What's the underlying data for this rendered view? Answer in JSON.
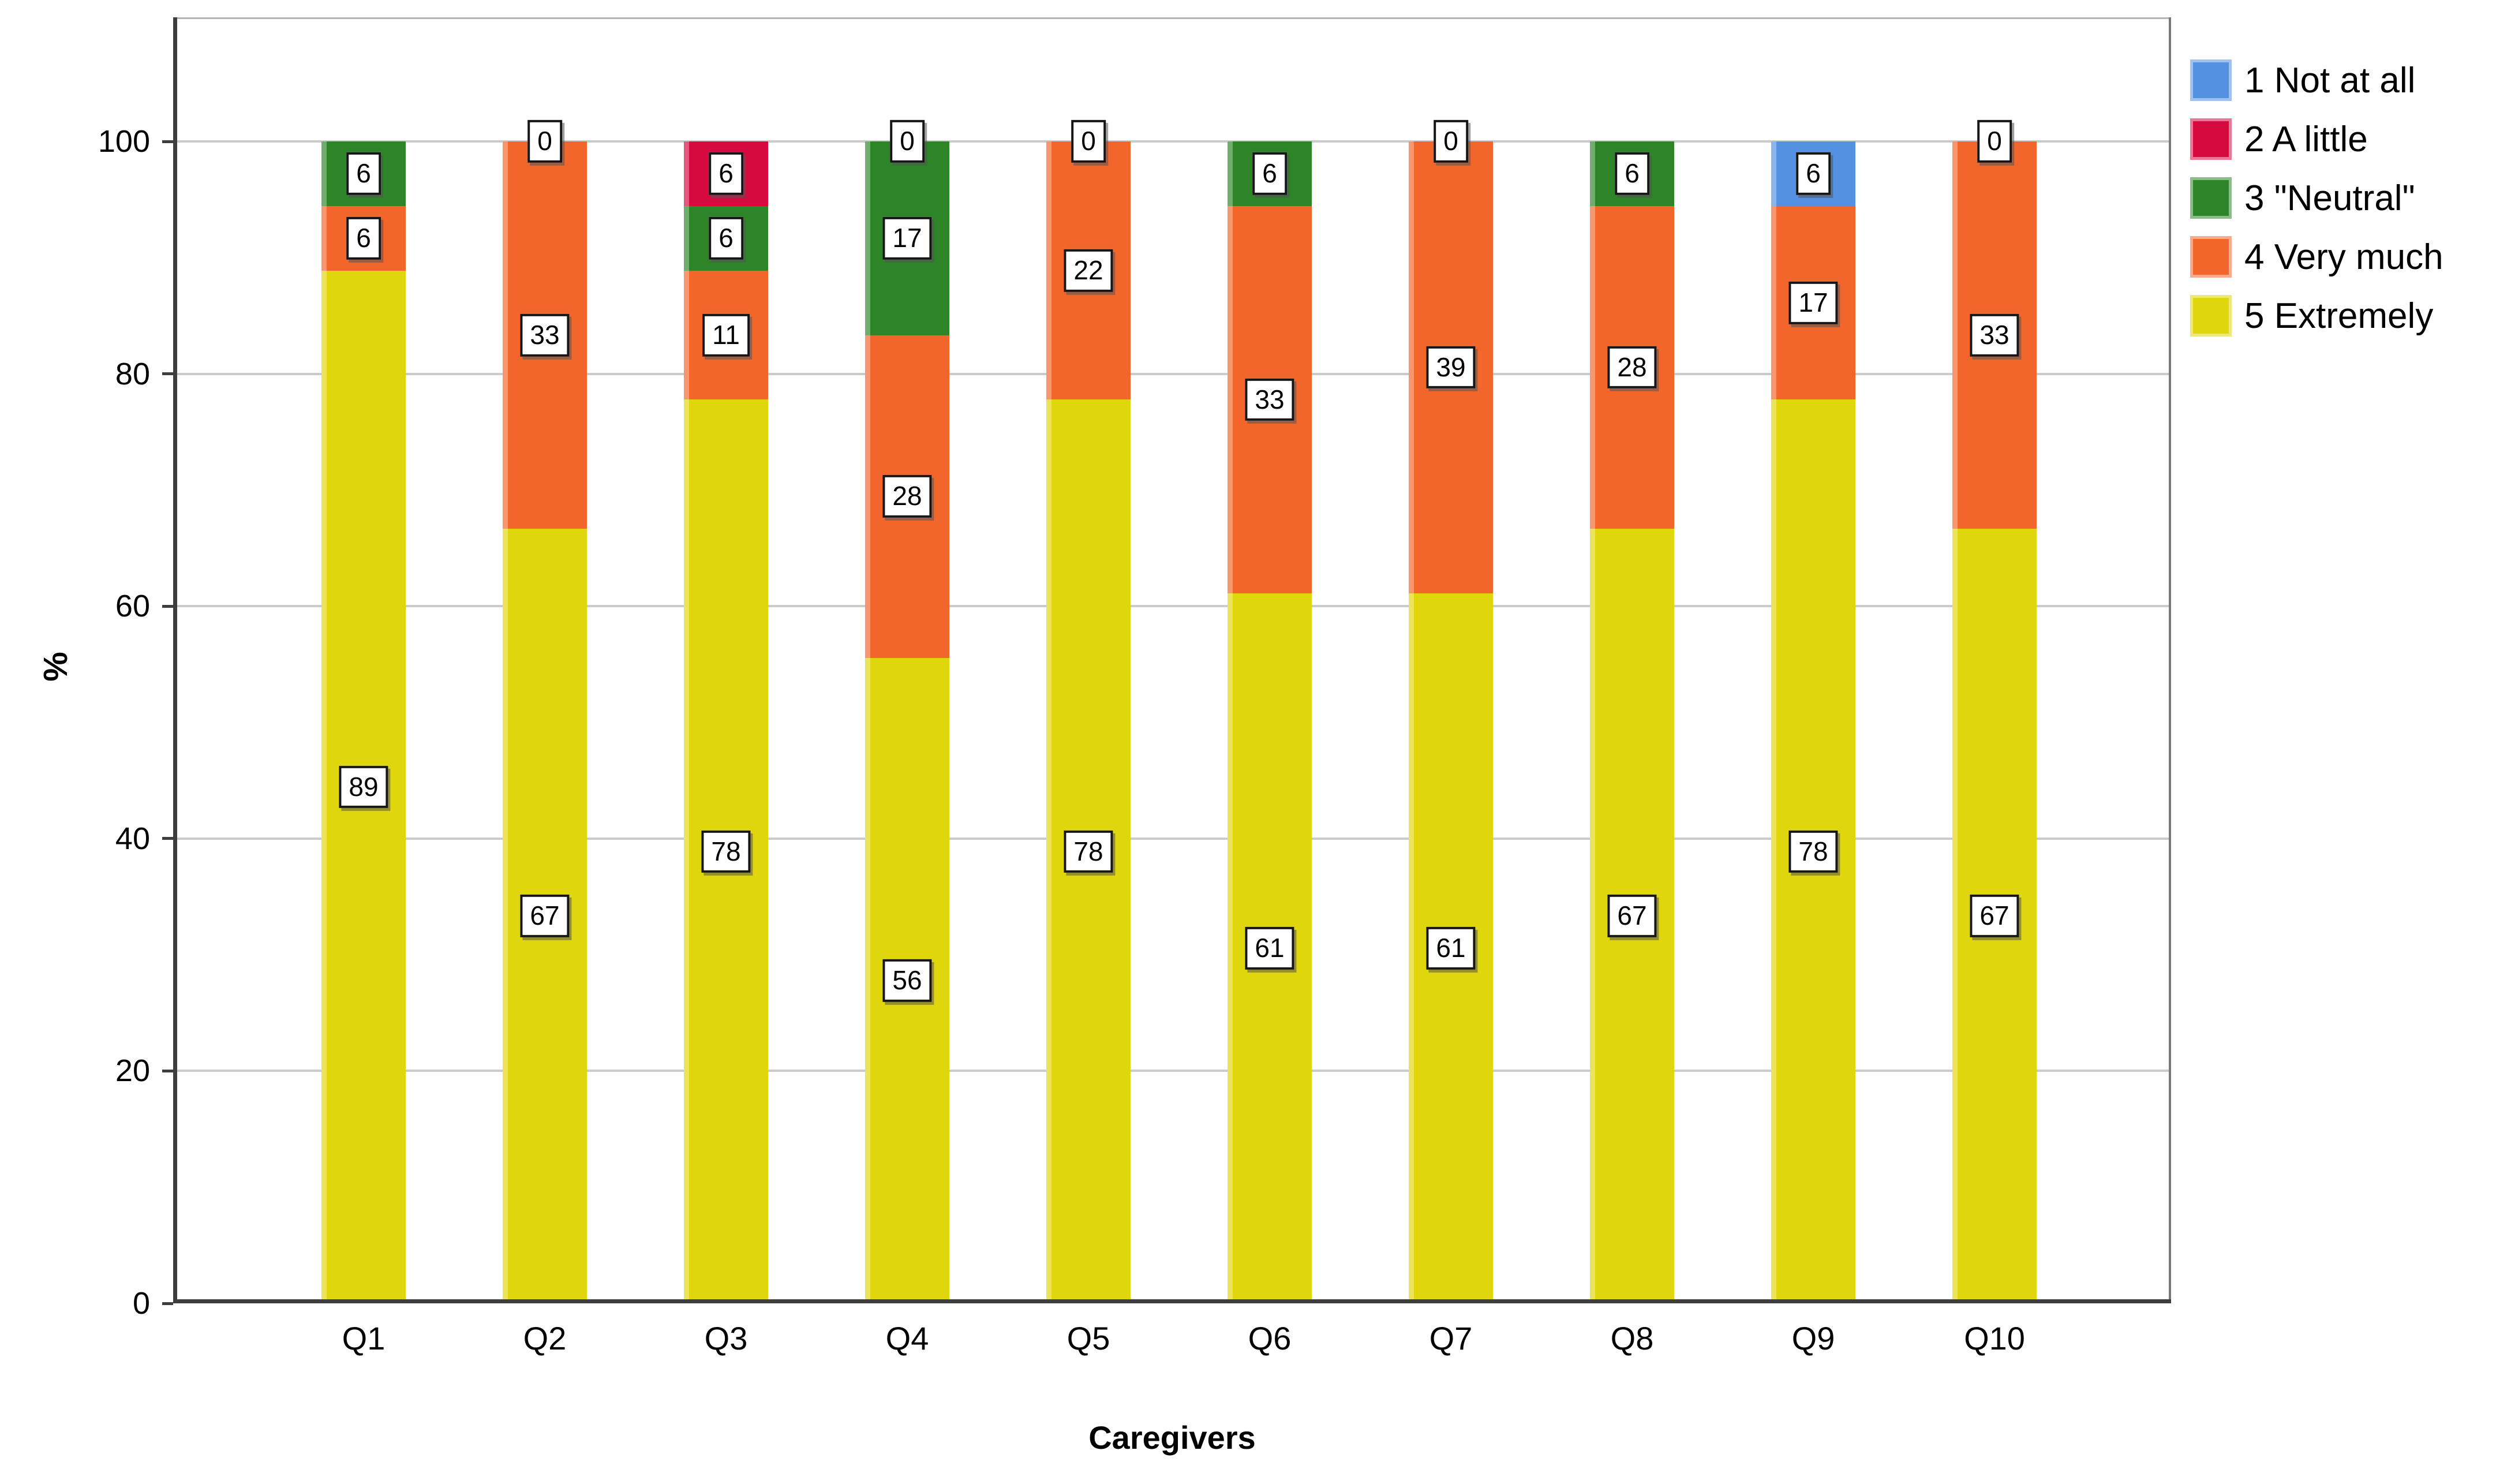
{
  "figure": {
    "background": "#FFFFFF",
    "gridline_color": "#CBCBCB",
    "axis_color": "#3E3E3E",
    "data_label_border_color": "#161616",
    "data_label_background": "#FFFFFF"
  },
  "chart_data": {
    "type": "bar",
    "stacked": true,
    "title": "",
    "xlabel": "Caregivers",
    "ylabel": "%",
    "ylim": [
      0,
      110.7
    ],
    "grid": "horizontal",
    "legend_position": "top-right",
    "y_ticks": [
      0,
      20,
      40,
      60,
      80,
      100
    ],
    "y_tick_labels": [
      "0",
      "20",
      "40",
      "60",
      "80",
      "100"
    ],
    "categories": [
      "Q1",
      "Q2",
      "Q3",
      "Q4",
      "Q5",
      "Q6",
      "Q7",
      "Q8",
      "Q9",
      "Q10"
    ],
    "series": [
      {
        "key": "1",
        "name": "1 Not at all",
        "color": "#5591E3",
        "values": [
          0,
          0,
          0,
          0,
          0,
          0,
          0,
          0,
          6,
          0
        ]
      },
      {
        "key": "2",
        "name": "2 A little",
        "color": "#D60A3E",
        "values": [
          0,
          0,
          6,
          0,
          0,
          0,
          0,
          0,
          0,
          0
        ]
      },
      {
        "key": "3",
        "name": "3 \"Neutral\"",
        "color": "#2D8528",
        "values": [
          6,
          0,
          6,
          17,
          0,
          6,
          0,
          6,
          0,
          0
        ]
      },
      {
        "key": "4",
        "name": "4 Very much",
        "color": "#F2662B",
        "values": [
          6,
          33,
          11,
          28,
          22,
          33,
          39,
          28,
          17,
          33
        ]
      },
      {
        "key": "5",
        "name": "5 Extremely",
        "color": "#E0D60E",
        "values": [
          89,
          67,
          78,
          56,
          78,
          61,
          61,
          67,
          78,
          67
        ]
      }
    ],
    "bars": [
      {
        "category": "Q1",
        "segments": [
          {
            "series": "5",
            "pct": 88.8889,
            "label": "89"
          },
          {
            "series": "4",
            "pct": 5.5556,
            "label": "6"
          },
          {
            "series": "3",
            "pct": 5.5556,
            "label": "6"
          }
        ]
      },
      {
        "category": "Q2",
        "segments": [
          {
            "series": "5",
            "pct": 66.6667,
            "label": "67"
          },
          {
            "series": "4",
            "pct": 33.3333,
            "label": "33"
          },
          {
            "series": "0",
            "pct": 0,
            "label": "0"
          }
        ]
      },
      {
        "category": "Q3",
        "segments": [
          {
            "series": "5",
            "pct": 77.7778,
            "label": "78"
          },
          {
            "series": "4",
            "pct": 11.1111,
            "label": "11"
          },
          {
            "series": "3",
            "pct": 5.5556,
            "label": "6"
          },
          {
            "series": "2",
            "pct": 5.5556,
            "label": "6"
          }
        ]
      },
      {
        "category": "Q4",
        "segments": [
          {
            "series": "5",
            "pct": 55.5556,
            "label": "56"
          },
          {
            "series": "4",
            "pct": 27.7778,
            "label": "28"
          },
          {
            "series": "3",
            "pct": 16.6667,
            "label": "17"
          },
          {
            "series": "0",
            "pct": 0,
            "label": "0"
          }
        ]
      },
      {
        "category": "Q5",
        "segments": [
          {
            "series": "5",
            "pct": 77.7778,
            "label": "78"
          },
          {
            "series": "4",
            "pct": 22.2222,
            "label": "22"
          },
          {
            "series": "0",
            "pct": 0,
            "label": "0"
          }
        ]
      },
      {
        "category": "Q6",
        "segments": [
          {
            "series": "5",
            "pct": 61.1111,
            "label": "61"
          },
          {
            "series": "4",
            "pct": 33.3333,
            "label": "33"
          },
          {
            "series": "3",
            "pct": 5.5556,
            "label": "6"
          }
        ]
      },
      {
        "category": "Q7",
        "segments": [
          {
            "series": "5",
            "pct": 61.1111,
            "label": "61"
          },
          {
            "series": "4",
            "pct": 38.8889,
            "label": "39"
          },
          {
            "series": "0",
            "pct": 0,
            "label": "0"
          }
        ]
      },
      {
        "category": "Q8",
        "segments": [
          {
            "series": "5",
            "pct": 66.6667,
            "label": "67"
          },
          {
            "series": "4",
            "pct": 27.7778,
            "label": "28"
          },
          {
            "series": "3",
            "pct": 5.5556,
            "label": "6"
          }
        ]
      },
      {
        "category": "Q9",
        "segments": [
          {
            "series": "5",
            "pct": 77.7778,
            "label": "78"
          },
          {
            "series": "4",
            "pct": 16.6667,
            "label": "17"
          },
          {
            "series": "1",
            "pct": 5.5556,
            "label": "6"
          }
        ]
      },
      {
        "category": "Q10",
        "segments": [
          {
            "series": "5",
            "pct": 66.6667,
            "label": "67"
          },
          {
            "series": "4",
            "pct": 33.3333,
            "label": "33"
          },
          {
            "series": "0",
            "pct": 0,
            "label": "0"
          }
        ]
      }
    ],
    "legend_items": [
      {
        "key": "1",
        "label": "1 Not at all"
      },
      {
        "key": "2",
        "label": "2 A little"
      },
      {
        "key": "3",
        "label": "3 \"Neutral\""
      },
      {
        "key": "4",
        "label": "4 Very much"
      },
      {
        "key": "5",
        "label": "5 Extremely"
      }
    ]
  }
}
